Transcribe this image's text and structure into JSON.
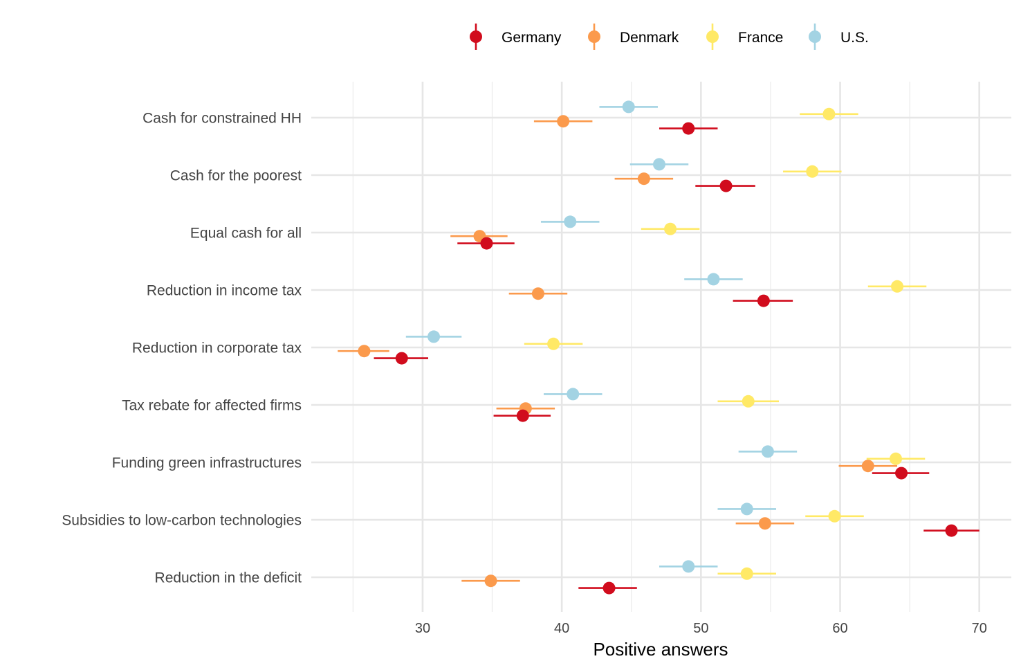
{
  "chart_data": {
    "type": "scatter",
    "xlabel": "Positive answers",
    "ylabel": "",
    "xlim": [
      22,
      72.3
    ],
    "xticks": [
      30,
      40,
      50,
      60,
      70
    ],
    "grid": true,
    "legend_position": "top",
    "categories": [
      "Cash for constrained HH",
      "Cash for the poorest",
      "Equal cash for all",
      "Reduction in income tax",
      "Reduction in corporate tax",
      "Tax rebate for affected firms",
      "Funding green infrastructures",
      "Subsidies to low-carbon technologies",
      "Reduction in the deficit"
    ],
    "series": [
      {
        "name": "Germany",
        "color": "#d10c1d",
        "values": [
          49.1,
          51.8,
          34.6,
          54.5,
          28.5,
          37.2,
          64.4,
          68.0,
          43.4
        ],
        "err_low": [
          47.0,
          49.6,
          32.5,
          52.3,
          26.5,
          35.1,
          62.3,
          66.0,
          41.2
        ],
        "err_high": [
          51.2,
          53.9,
          36.6,
          56.6,
          30.4,
          39.2,
          66.4,
          70.0,
          45.4
        ]
      },
      {
        "name": "Denmark",
        "color": "#fb9a4c",
        "values": [
          40.1,
          45.9,
          34.1,
          38.3,
          25.8,
          37.4,
          62.0,
          54.6,
          34.9
        ],
        "err_low": [
          38.0,
          43.8,
          32.0,
          36.2,
          23.9,
          35.3,
          59.9,
          52.5,
          32.8
        ],
        "err_high": [
          42.2,
          48.0,
          36.1,
          40.4,
          27.6,
          39.5,
          64.1,
          56.7,
          37.0
        ]
      },
      {
        "name": "France",
        "color": "#ffe966",
        "values": [
          59.2,
          58.0,
          47.8,
          64.1,
          39.4,
          53.4,
          64.0,
          59.6,
          53.3
        ],
        "err_low": [
          57.1,
          55.9,
          45.7,
          62.0,
          37.3,
          51.2,
          61.9,
          57.5,
          51.2
        ],
        "err_high": [
          61.3,
          60.1,
          49.9,
          66.2,
          41.5,
          55.6,
          66.1,
          61.7,
          55.4
        ]
      },
      {
        "name": "U.S.",
        "color": "#a3d3e3",
        "values": [
          44.8,
          47.0,
          40.6,
          50.9,
          30.8,
          40.8,
          54.8,
          53.3,
          49.1
        ],
        "err_low": [
          42.7,
          44.9,
          38.5,
          48.8,
          28.8,
          38.7,
          52.7,
          51.2,
          47.0
        ],
        "err_high": [
          46.9,
          49.1,
          42.7,
          53.0,
          32.8,
          42.9,
          56.9,
          55.4,
          51.2
        ]
      }
    ]
  }
}
